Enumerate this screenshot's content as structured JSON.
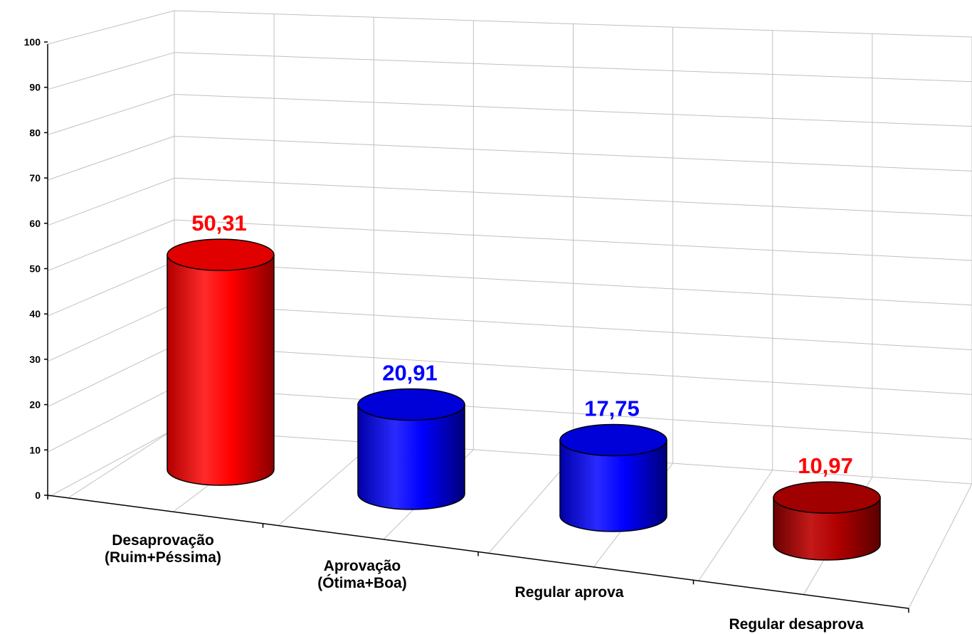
{
  "chart_data": {
    "type": "bar",
    "style": "3d-cylinder",
    "categories": [
      [
        "Desaprovação",
        "(Ruim+Péssima)"
      ],
      [
        "Aprovação",
        "(Ótima+Boa)"
      ],
      [
        "Regular aprova"
      ],
      [
        "Regular desaprova"
      ]
    ],
    "values": [
      50.31,
      20.91,
      17.75,
      10.97
    ],
    "value_labels": [
      "50,31",
      "20,91",
      "17,75",
      "10,97"
    ],
    "bar_colors": [
      "#ff0000",
      "#0000ff",
      "#0000ff",
      "#c00000"
    ],
    "label_colors": [
      "#ff0000",
      "#0000ff",
      "#0000ff",
      "#ff0000"
    ],
    "ylim": [
      0,
      100
    ],
    "yticks": [
      "0",
      "10",
      "20",
      "30",
      "40",
      "50",
      "60",
      "70",
      "80",
      "90",
      "100"
    ],
    "grid": true,
    "legend": "none"
  }
}
